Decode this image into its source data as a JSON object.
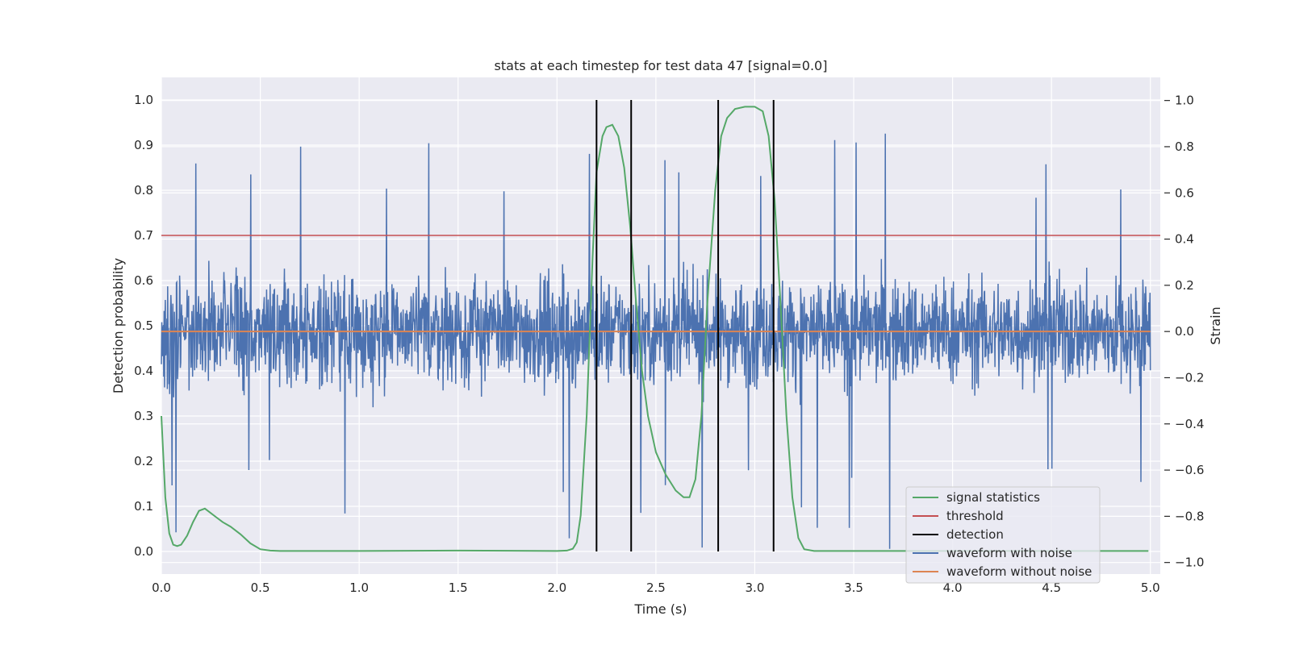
{
  "chart_data": {
    "type": "line",
    "title": "stats at each timestep for test data 47 [signal=0.0]",
    "xlabel": "Time (s)",
    "ylabel": "Detection probability",
    "y2label": "Strain",
    "xlim": [
      0.0,
      5.05
    ],
    "ylim": [
      -0.05,
      1.05
    ],
    "y2lim": [
      -1.05,
      1.1
    ],
    "x_ticks": [
      "0.0",
      "0.5",
      "1.0",
      "1.5",
      "2.0",
      "2.5",
      "3.0",
      "3.5",
      "4.0",
      "4.5",
      "5.0"
    ],
    "y_ticks": [
      "0.0",
      "0.1",
      "0.2",
      "0.3",
      "0.4",
      "0.5",
      "0.6",
      "0.7",
      "0.8",
      "0.9",
      "1.0"
    ],
    "y2_ticks": [
      "−1.0",
      "−0.8",
      "−0.6",
      "−0.4",
      "−0.2",
      "0.0",
      "0.2",
      "0.4",
      "0.6",
      "0.8",
      "1.0"
    ],
    "grid": true,
    "legend_position": "lower-right",
    "series": [
      {
        "name": "signal statistics",
        "axis": "left",
        "color": "#55a868",
        "x": [
          0.0,
          0.02,
          0.04,
          0.06,
          0.08,
          0.1,
          0.13,
          0.16,
          0.19,
          0.22,
          0.25,
          0.28,
          0.31,
          0.35,
          0.4,
          0.45,
          0.5,
          0.55,
          0.6,
          1.0,
          1.5,
          2.0,
          2.05,
          2.08,
          2.1,
          2.12,
          2.15,
          2.18,
          2.2,
          2.23,
          2.25,
          2.28,
          2.31,
          2.34,
          2.37,
          2.4,
          2.43,
          2.46,
          2.5,
          2.55,
          2.6,
          2.64,
          2.67,
          2.7,
          2.73,
          2.76,
          2.8,
          2.83,
          2.86,
          2.9,
          2.95,
          3.0,
          3.04,
          3.07,
          3.1,
          3.13,
          3.16,
          3.19,
          3.22,
          3.25,
          3.3,
          3.5,
          4.0,
          4.5,
          4.99
        ],
        "values": [
          0.3,
          0.12,
          0.04,
          0.015,
          0.012,
          0.015,
          0.035,
          0.065,
          0.09,
          0.095,
          0.085,
          0.075,
          0.065,
          0.055,
          0.038,
          0.018,
          0.005,
          0.002,
          0.001,
          0.001,
          0.002,
          0.001,
          0.002,
          0.006,
          0.02,
          0.08,
          0.3,
          0.65,
          0.84,
          0.92,
          0.94,
          0.945,
          0.92,
          0.85,
          0.72,
          0.55,
          0.4,
          0.3,
          0.22,
          0.17,
          0.135,
          0.12,
          0.12,
          0.16,
          0.3,
          0.55,
          0.8,
          0.92,
          0.96,
          0.98,
          0.985,
          0.985,
          0.975,
          0.92,
          0.78,
          0.55,
          0.3,
          0.12,
          0.03,
          0.005,
          0.001,
          0.001,
          0.001,
          0.001,
          0.001
        ]
      },
      {
        "name": "threshold",
        "axis": "left",
        "color": "#c44e52",
        "x": [
          0.0,
          5.05
        ],
        "values": [
          0.7,
          0.7
        ]
      },
      {
        "name": "detection",
        "axis": "left",
        "color": "#000000",
        "type": "vlines",
        "x": [
          2.2,
          2.375,
          2.815,
          3.095
        ],
        "y_range": [
          0.0,
          1.0
        ]
      },
      {
        "name": "waveform with noise",
        "axis": "right",
        "color": "#4c72b0",
        "x_range": [
          0.0,
          5.0
        ],
        "values_range": [
          -1.0,
          1.0
        ]
      },
      {
        "name": "waveform without noise",
        "axis": "right",
        "color": "#dd8452",
        "x": [
          0.0,
          5.0
        ],
        "values": [
          0.0,
          0.0
        ]
      }
    ]
  }
}
